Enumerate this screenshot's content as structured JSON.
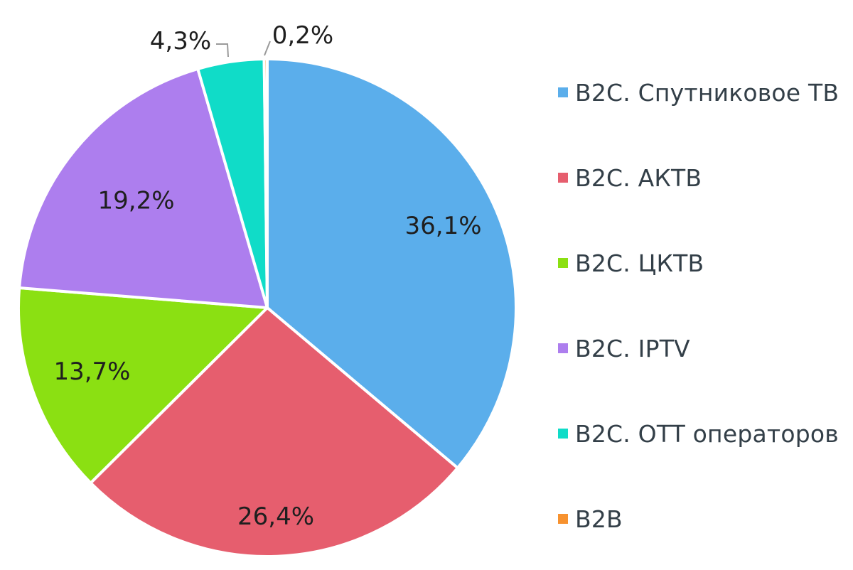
{
  "chart_data": {
    "type": "pie",
    "start_angle_deg": 0,
    "direction": "clockwise",
    "legend_position": "right",
    "slices": [
      {
        "name": "B2C. Спутниковое ТВ",
        "value": 36.1,
        "label": "36,1%",
        "color": "#5BAEEB"
      },
      {
        "name": "B2C. АКТВ",
        "value": 26.4,
        "label": "26,4%",
        "color": "#E65E6E"
      },
      {
        "name": "B2C. ЦКТВ",
        "value": 13.7,
        "label": "13,7%",
        "color": "#8BE012"
      },
      {
        "name": "B2C. IPTV",
        "value": 19.2,
        "label": "19,2%",
        "color": "#AD7EEE"
      },
      {
        "name": "B2C. OTT операторов",
        "value": 4.3,
        "label": "4,3%",
        "color": "#10DCC8"
      },
      {
        "name": "B2B",
        "value": 0.2,
        "label": "0,2%",
        "color": "#F7922F"
      }
    ]
  }
}
